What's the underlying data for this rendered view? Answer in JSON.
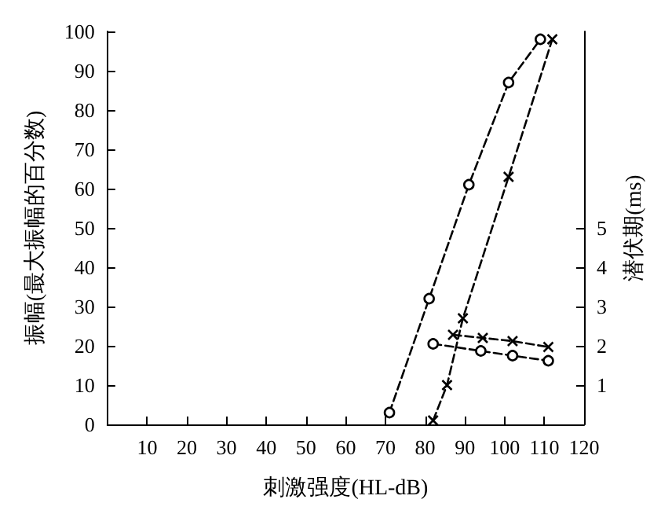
{
  "chart_data": {
    "type": "line",
    "xlabel": "刺激强度(HL-dB)",
    "ylabel": "振幅(最大振幅的百分数)",
    "y2label": "潜伏期(ms)",
    "xlim": [
      0,
      120
    ],
    "xticks": [
      10,
      20,
      30,
      40,
      50,
      60,
      70,
      80,
      90,
      100,
      110,
      120
    ],
    "ylim": [
      0,
      100
    ],
    "yticks": [
      0,
      10,
      20,
      30,
      40,
      50,
      60,
      70,
      80,
      90,
      100
    ],
    "y2lim": [
      0,
      10
    ],
    "y2ticks": [
      1,
      2,
      3,
      4,
      5
    ],
    "grid": false,
    "line_style": "dashed",
    "series": [
      {
        "color": "#000000",
        "marker": "circle",
        "x": [
          71,
          81,
          91,
          101,
          109
        ],
        "values": [
          3,
          32,
          61,
          87,
          98
        ]
      },
      {
        "color": "#000000",
        "marker": "cross",
        "x": [
          82,
          85.5,
          89.5,
          101,
          112
        ],
        "values": [
          1,
          10,
          27,
          63,
          98
        ]
      },
      {
        "color": "#000000",
        "marker": "circle",
        "axis": "y2",
        "x": [
          82,
          94,
          102,
          111
        ],
        "values": [
          2.05,
          1.87,
          1.75,
          1.62
        ]
      },
      {
        "color": "#000000",
        "marker": "cross",
        "axis": "y2",
        "x": [
          87,
          94.5,
          102,
          111
        ],
        "values": [
          2.28,
          2.2,
          2.12,
          1.97
        ]
      }
    ]
  }
}
